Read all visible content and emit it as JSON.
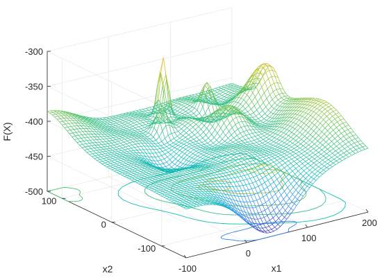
{
  "chart_data": {
    "type": "surface-mesh",
    "title": "",
    "xlabel": "x1",
    "ylabel": "x2",
    "zlabel": "F(X)",
    "x_ticks": [
      -100,
      0,
      100,
      200
    ],
    "y_ticks": [
      -100,
      0,
      100
    ],
    "z_ticks": [
      -500,
      -450,
      -400,
      -350,
      -300
    ],
    "xlim": [
      -100,
      200
    ],
    "ylim": [
      -150,
      130
    ],
    "zlim": [
      -500,
      -300
    ],
    "grid": true,
    "contour_projection": true,
    "colormap": [
      "#3e26a8",
      "#2e87f7",
      "#0cbcbc",
      "#48c16e",
      "#abc72a",
      "#f8ba3d",
      "#f9fb15"
    ],
    "surface_samples": [
      {
        "x1": -100,
        "x2": 130,
        "F": -410
      },
      {
        "x1": -50,
        "x2": 80,
        "F": -400
      },
      {
        "x1": 0,
        "x2": 0,
        "F": -420
      },
      {
        "x1": 20,
        "x2": -80,
        "F": -470
      },
      {
        "x1": 40,
        "x2": -150,
        "F": -490
      },
      {
        "x1": 30,
        "x2": 60,
        "F": -355
      },
      {
        "x1": 60,
        "x2": 90,
        "F": -300
      },
      {
        "x1": 120,
        "x2": 80,
        "F": -340
      },
      {
        "x1": 190,
        "x2": 50,
        "F": -330
      },
      {
        "x1": 200,
        "x2": -50,
        "F": -430
      },
      {
        "x1": 200,
        "x2": -150,
        "F": -440
      },
      {
        "x1": 150,
        "x2": -100,
        "F": -410
      }
    ]
  }
}
